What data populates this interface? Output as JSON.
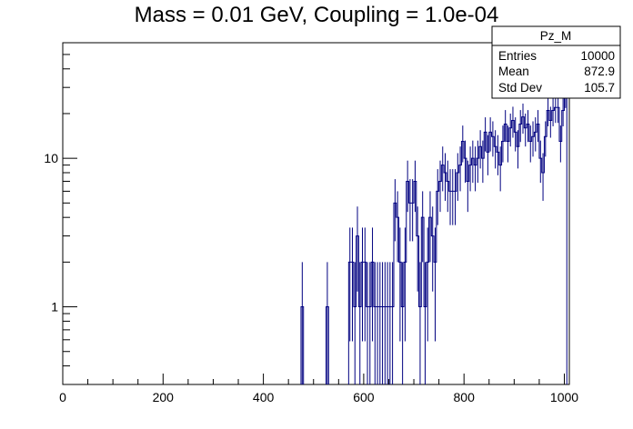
{
  "chart_data": {
    "type": "histogram",
    "title": "Mass = 0.01 GeV, Coupling = 1.0e-04",
    "histogram_name": "Pz_M",
    "x_range": [
      0,
      1010
    ],
    "y_scale": "log",
    "y_range": [
      0.3,
      60
    ],
    "bin_width": 5,
    "line_color": "#000080",
    "x_ticks": [
      "0",
      "200",
      "400",
      "600",
      "800",
      "1000"
    ],
    "x_tick_values": [
      0,
      200,
      400,
      600,
      800,
      1000
    ],
    "y_ticks": [
      "1",
      "10"
    ],
    "y_tick_values": [
      1,
      10
    ],
    "stats": {
      "entries_label": "Entries",
      "entries": "10000",
      "mean_label": "Mean",
      "mean": "872.9",
      "stddev_label": "Std Dev",
      "stddev": "105.7"
    },
    "bins": [
      [
        475,
        1
      ],
      [
        525,
        1
      ],
      [
        570,
        2
      ],
      [
        575,
        2
      ],
      [
        580,
        1
      ],
      [
        585,
        3
      ],
      [
        590,
        1
      ],
      [
        595,
        2
      ],
      [
        600,
        2
      ],
      [
        605,
        1
      ],
      [
        610,
        1
      ],
      [
        615,
        2
      ],
      [
        620,
        1
      ],
      [
        625,
        1
      ],
      [
        630,
        1
      ],
      [
        635,
        1
      ],
      [
        640,
        1
      ],
      [
        645,
        1
      ],
      [
        650,
        1
      ],
      [
        655,
        1
      ],
      [
        660,
        5
      ],
      [
        665,
        4
      ],
      [
        670,
        2
      ],
      [
        675,
        1
      ],
      [
        680,
        2
      ],
      [
        685,
        7
      ],
      [
        690,
        5
      ],
      [
        695,
        5
      ],
      [
        700,
        7
      ],
      [
        705,
        3
      ],
      [
        710,
        1
      ],
      [
        715,
        4
      ],
      [
        720,
        1
      ],
      [
        725,
        2
      ],
      [
        730,
        4
      ],
      [
        735,
        3
      ],
      [
        740,
        2
      ],
      [
        745,
        6
      ],
      [
        750,
        7
      ],
      [
        755,
        9
      ],
      [
        760,
        8
      ],
      [
        765,
        7
      ],
      [
        770,
        6
      ],
      [
        775,
        6
      ],
      [
        780,
        6
      ],
      [
        785,
        8
      ],
      [
        790,
        9
      ],
      [
        795,
        13
      ],
      [
        800,
        10
      ],
      [
        805,
        7
      ],
      [
        810,
        9
      ],
      [
        815,
        10
      ],
      [
        820,
        9
      ],
      [
        825,
        10
      ],
      [
        830,
        12
      ],
      [
        835,
        10
      ],
      [
        840,
        15
      ],
      [
        845,
        11
      ],
      [
        850,
        15
      ],
      [
        855,
        14
      ],
      [
        860,
        12
      ],
      [
        865,
        11
      ],
      [
        870,
        9
      ],
      [
        875,
        13
      ],
      [
        880,
        17
      ],
      [
        885,
        13
      ],
      [
        890,
        16
      ],
      [
        895,
        18
      ],
      [
        900,
        15
      ],
      [
        905,
        12
      ],
      [
        910,
        17
      ],
      [
        915,
        19
      ],
      [
        920,
        16
      ],
      [
        925,
        17
      ],
      [
        930,
        13
      ],
      [
        935,
        14
      ],
      [
        940,
        15
      ],
      [
        945,
        17
      ],
      [
        950,
        10
      ],
      [
        955,
        8
      ],
      [
        960,
        14
      ],
      [
        965,
        21
      ],
      [
        970,
        18
      ],
      [
        975,
        21
      ],
      [
        980,
        22
      ],
      [
        985,
        22
      ],
      [
        990,
        13
      ],
      [
        995,
        21
      ],
      [
        1000,
        27
      ]
    ]
  }
}
